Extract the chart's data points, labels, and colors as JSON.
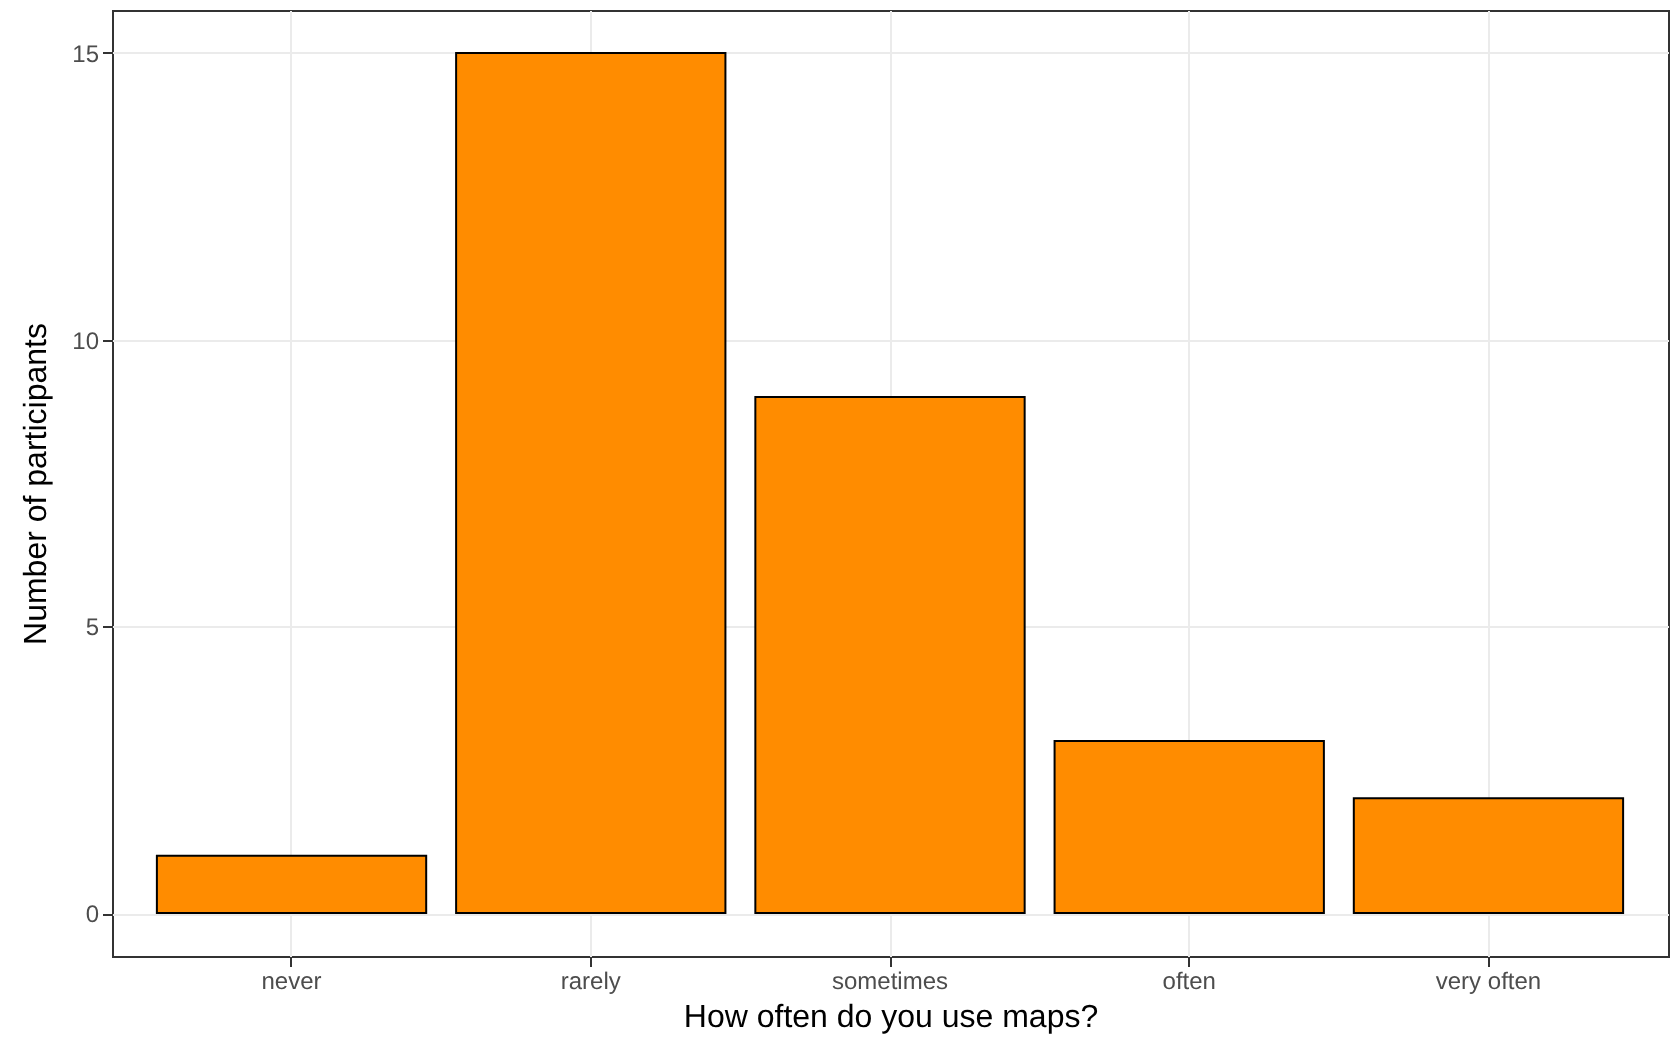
{
  "chart_data": {
    "type": "bar",
    "xlabel": "How often do you use maps?",
    "ylabel": "Number of participants",
    "categories": [
      "never",
      "rarely",
      "sometimes",
      "often",
      "very often"
    ],
    "values": [
      1,
      15,
      9,
      3,
      2
    ],
    "color": "#ff8c00",
    "ylim": [
      -0.75,
      15.75
    ],
    "yticks": [
      0,
      5,
      10,
      15
    ],
    "grid": true
  }
}
